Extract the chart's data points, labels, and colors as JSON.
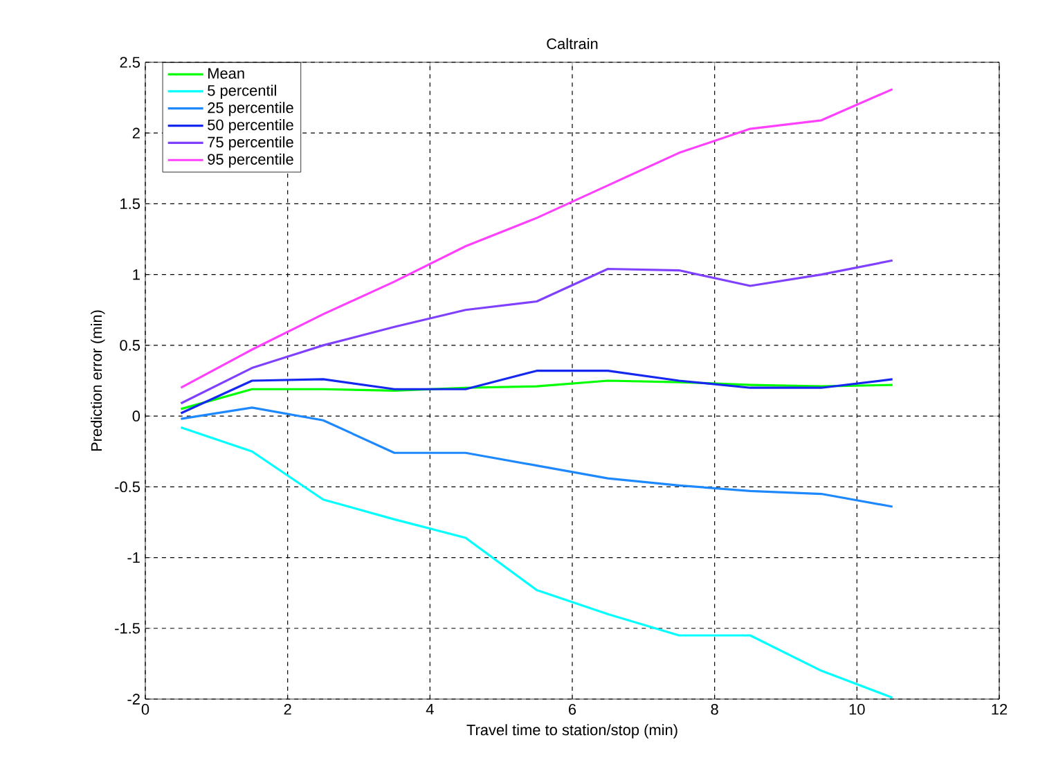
{
  "chart_data": {
    "type": "line",
    "title": "Caltrain",
    "xlabel": "Travel time to station/stop (min)",
    "ylabel": "Prediction error (min)",
    "xlim": [
      0,
      12
    ],
    "ylim": [
      -2,
      2.5
    ],
    "xticks": [
      0,
      2,
      4,
      6,
      8,
      10,
      12
    ],
    "yticks": [
      -2,
      -1.5,
      -1,
      -0.5,
      0,
      0.5,
      1,
      1.5,
      2,
      2.5
    ],
    "grid": true,
    "legend": "top left",
    "marker": "none",
    "line_style": "solid",
    "x": [
      0.5,
      1.5,
      2.5,
      3.5,
      4.5,
      5.5,
      6.5,
      7.5,
      8.5,
      9.5,
      10.5
    ],
    "series": [
      {
        "name": "Mean",
        "color": "#00ff00",
        "values": [
          0.05,
          0.19,
          0.19,
          0.18,
          0.2,
          0.21,
          0.25,
          0.24,
          0.22,
          0.21,
          0.22
        ]
      },
      {
        "name": "5 percentil",
        "color": "#00ffff",
        "values": [
          -0.08,
          -0.25,
          -0.59,
          -0.73,
          -0.86,
          -1.23,
          -1.4,
          -1.55,
          -1.55,
          -1.8,
          -1.99
        ]
      },
      {
        "name": "25 percentile",
        "color": "#1e88ff",
        "values": [
          -0.02,
          0.06,
          -0.03,
          -0.26,
          -0.26,
          -0.35,
          -0.44,
          -0.49,
          -0.53,
          -0.55,
          -0.64
        ]
      },
      {
        "name": "50 percentile",
        "color": "#1428f0",
        "values": [
          0.02,
          0.25,
          0.26,
          0.19,
          0.19,
          0.32,
          0.32,
          0.25,
          0.2,
          0.2,
          0.26
        ]
      },
      {
        "name": "75 percentile",
        "color": "#8040ff",
        "values": [
          0.09,
          0.34,
          0.5,
          0.63,
          0.75,
          0.81,
          1.04,
          1.03,
          0.92,
          1.0,
          1.1
        ]
      },
      {
        "name": "95 percentile",
        "color": "#ff40ff",
        "values": [
          0.2,
          0.47,
          0.72,
          0.95,
          1.2,
          1.4,
          1.63,
          1.86,
          2.03,
          2.09,
          2.31
        ]
      }
    ]
  }
}
